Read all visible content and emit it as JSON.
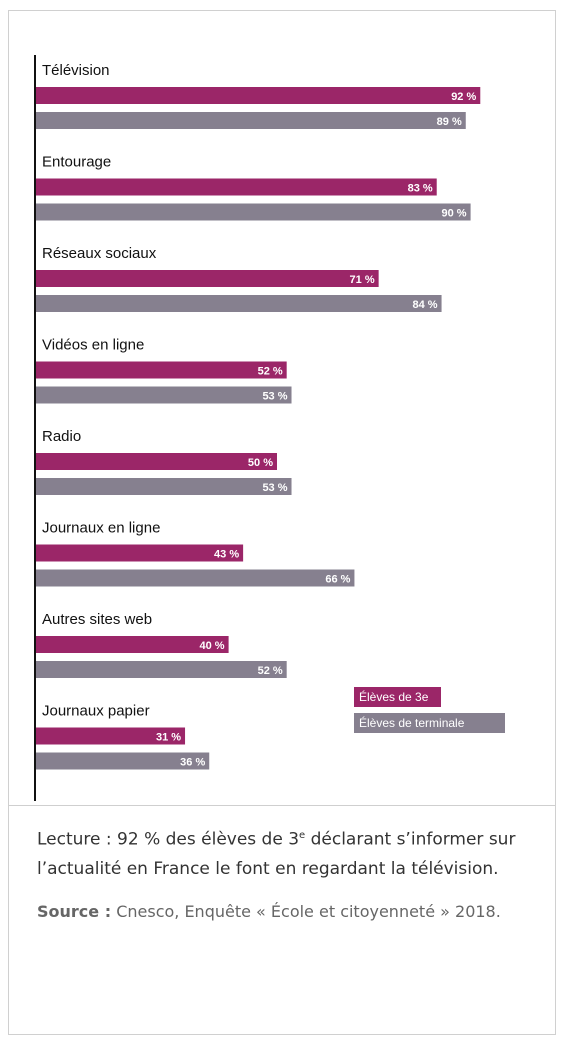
{
  "chart_data": {
    "type": "bar",
    "orientation": "horizontal",
    "categories": [
      "Télévision",
      "Entourage",
      "Réseaux sociaux",
      "Vidéos en ligne",
      "Radio",
      "Journaux en ligne",
      "Autres sites web",
      "Journaux papier"
    ],
    "series": [
      {
        "name": "Élèves de 3e",
        "color": "#9b2668",
        "values": [
          92,
          83,
          71,
          52,
          50,
          43,
          40,
          31
        ]
      },
      {
        "name": "Élèves de terminale",
        "color": "#86808f",
        "values": [
          89,
          90,
          84,
          53,
          53,
          66,
          52,
          36
        ]
      }
    ],
    "value_suffix": " %",
    "xlim": [
      0,
      100
    ],
    "legend_position": "bottom-right",
    "grid": false
  },
  "caption": {
    "reading_main": "Lecture : 92 % des élèves de 3",
    "reading_sup": "e",
    "reading_rest": " déclarant s’informer sur l’actualité en France le font en regardant la télévision.",
    "source_label": "Source :",
    "source_text": " Cnesco, Enquête « École et citoyenneté »  2018."
  }
}
